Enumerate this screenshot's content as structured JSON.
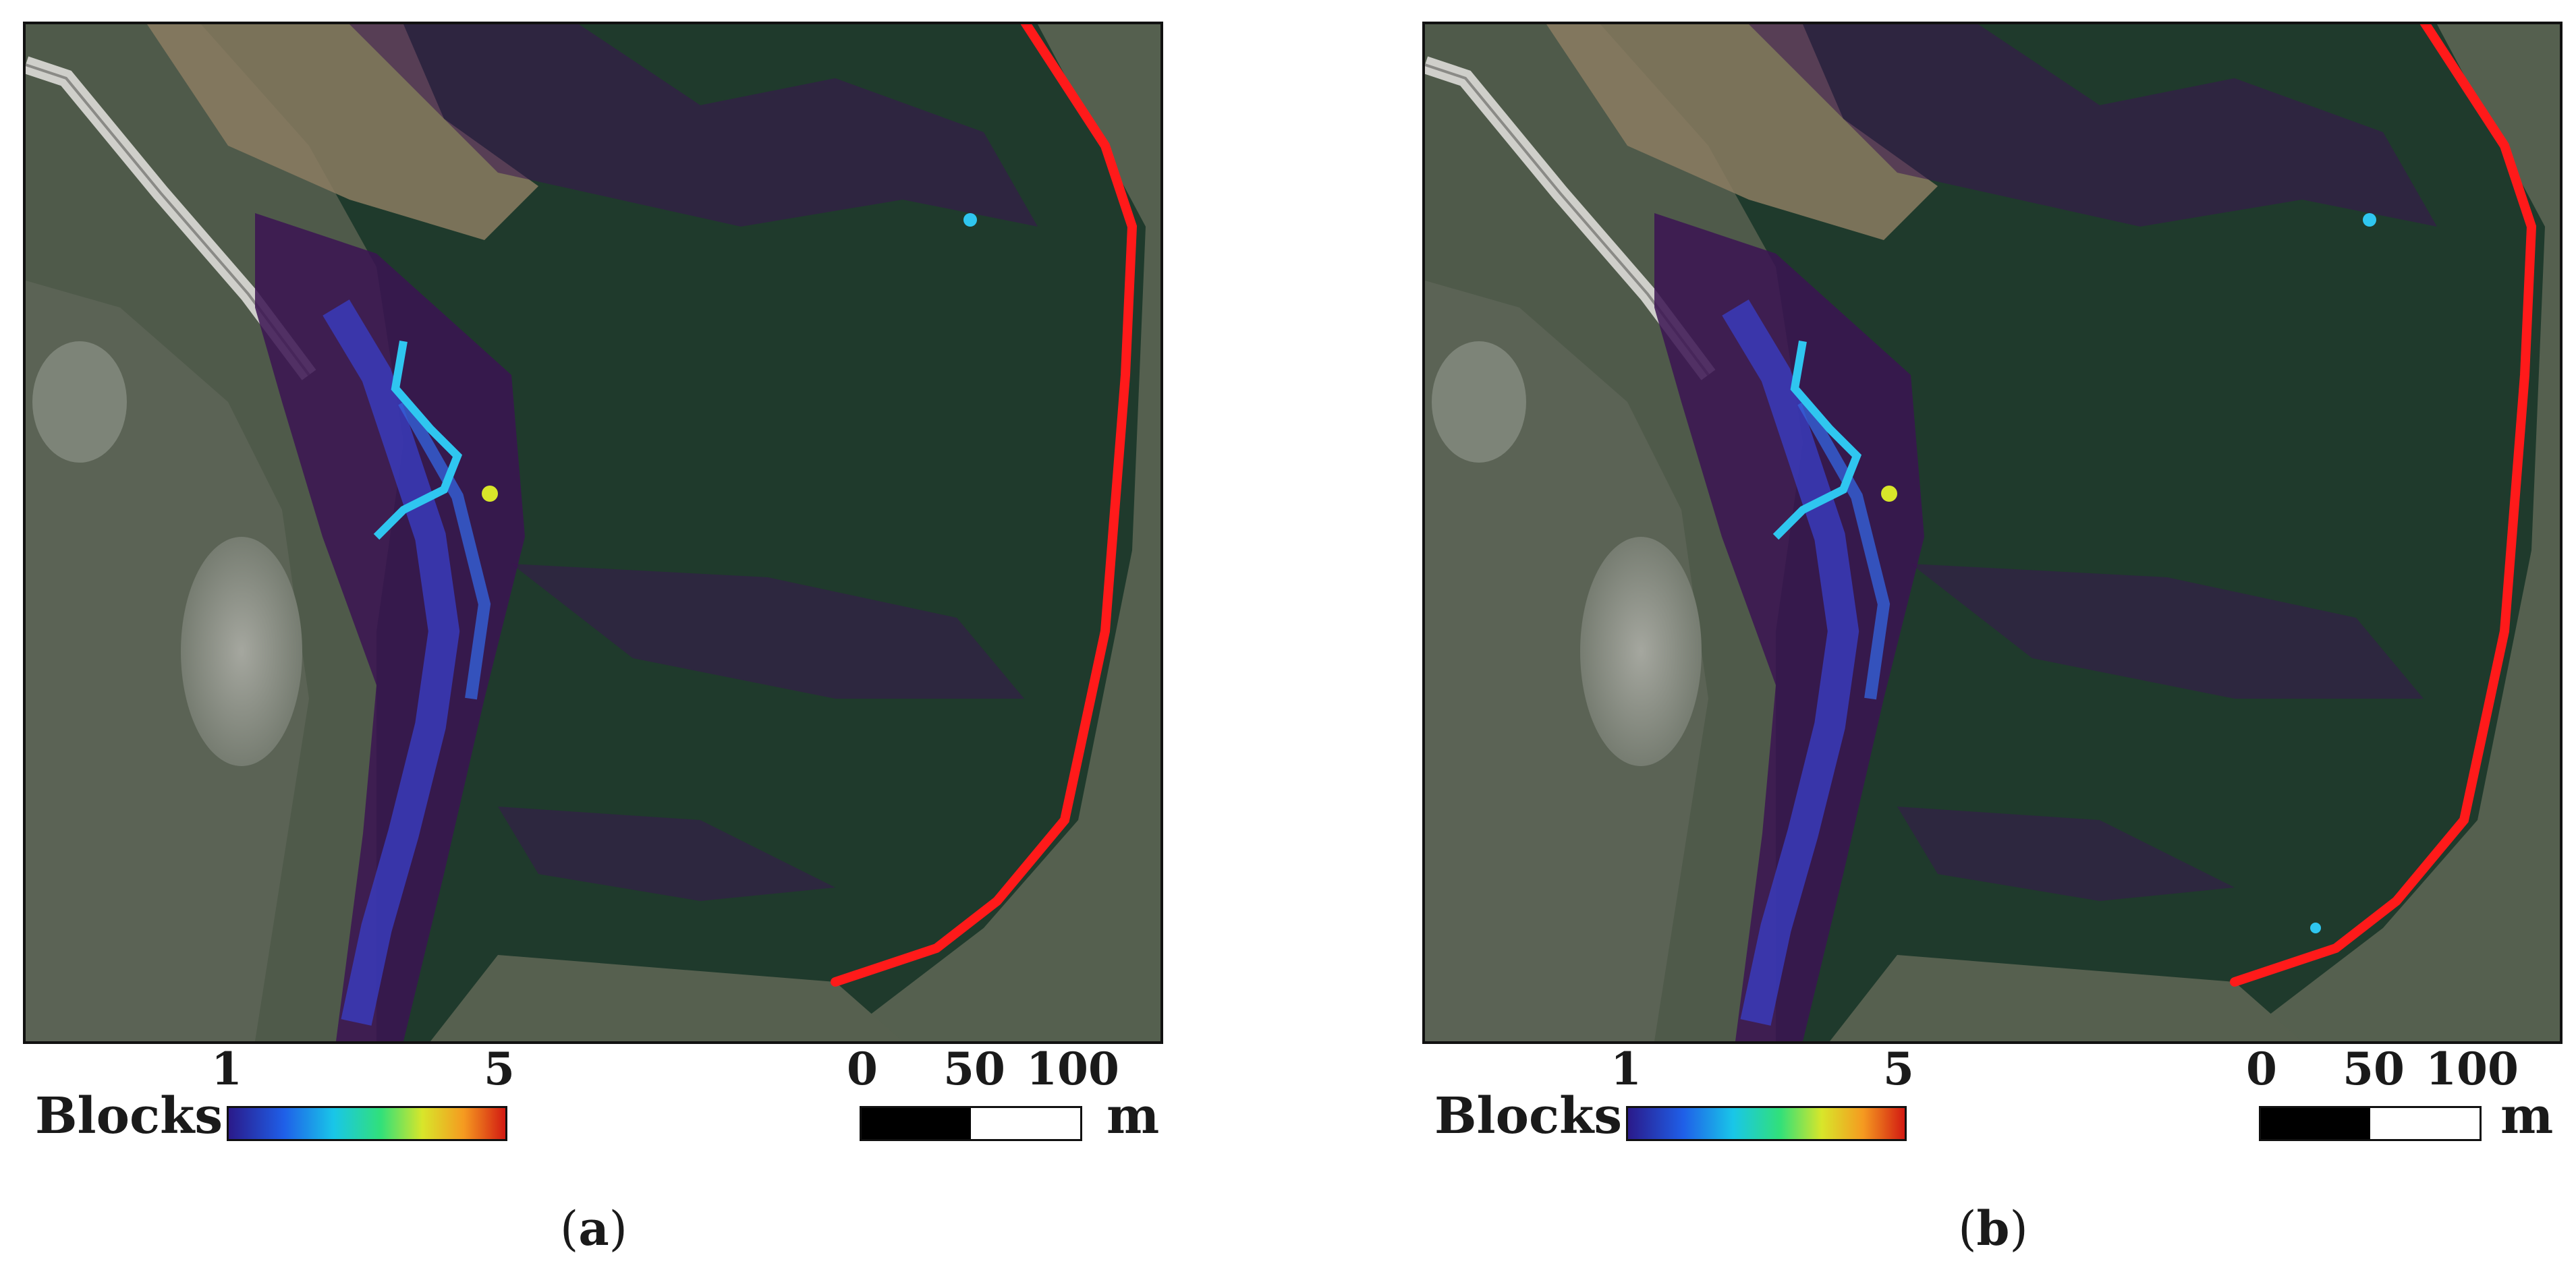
{
  "panels": [
    {
      "id": "a",
      "caption_open": "(",
      "caption_letter": "a",
      "caption_close": ")",
      "legend": {
        "label": "Blocks",
        "min": "1",
        "max": "5"
      },
      "scale": {
        "ticks": [
          "0",
          "50",
          "100"
        ],
        "unit": "m"
      }
    },
    {
      "id": "b",
      "caption_open": "(",
      "caption_letter": "b",
      "caption_close": ")",
      "legend": {
        "label": "Blocks",
        "min": "1",
        "max": "5"
      },
      "scale": {
        "ticks": [
          "0",
          "50",
          "100"
        ],
        "unit": "m"
      }
    }
  ],
  "colors": {
    "boundary_line": "#ff1a1a",
    "forest": "#1e3a2b",
    "rock": "#8a8f85",
    "road": "#c9c9c4",
    "low_density": "#3b1452",
    "mid_density": "#3560d8",
    "high_density": "#2fc6f0",
    "colorbar": [
      "#2a1a8a",
      "#1f5fe8",
      "#19c6e8",
      "#31e07a",
      "#d8e62a",
      "#f59a20",
      "#d21a12"
    ]
  },
  "icons": {
    "north": "none"
  }
}
